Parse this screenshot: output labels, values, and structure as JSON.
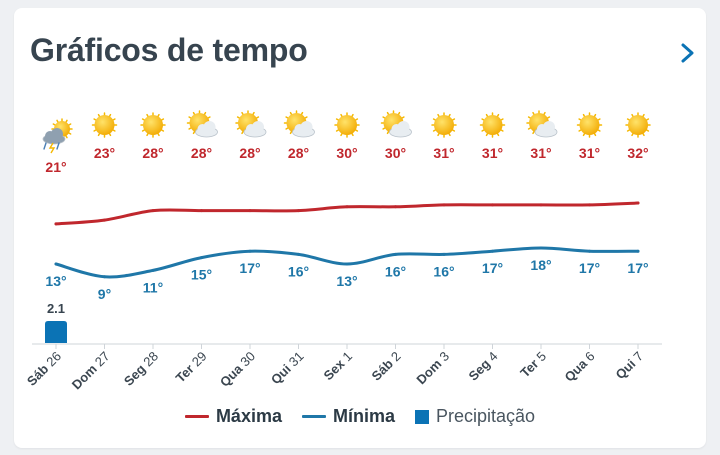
{
  "header": {
    "title": "Gráficos de tempo",
    "nav_icon": "chevron-right-icon"
  },
  "colors": {
    "max": "#c0272d",
    "min": "#1f77a8",
    "precip": "#0b73b5",
    "axis": "#cfd4d9",
    "label": "#3b4650"
  },
  "legend": {
    "max_label": "Máxima",
    "min_label": "Mínima",
    "precip_label": "Precipitação"
  },
  "chart_data": {
    "type": "line",
    "categories": [
      "Sáb 26",
      "Dom 27",
      "Seg 28",
      "Ter 29",
      "Qua 30",
      "Qui 31",
      "Sex 1",
      "Sáb 2",
      "Dom 3",
      "Seg 4",
      "Ter 5",
      "Qua 6",
      "Qui 7"
    ],
    "icons": [
      "thunderstorm-sun-icon",
      "sun-icon",
      "sun-icon",
      "partly-cloudy-icon",
      "partly-cloudy-icon",
      "partly-cloudy-icon",
      "sun-icon",
      "partly-cloudy-icon",
      "sun-icon",
      "sun-icon",
      "partly-cloudy-icon",
      "sun-icon",
      "sun-icon"
    ],
    "series": [
      {
        "name": "Máxima",
        "values": [
          21,
          23,
          28,
          28,
          28,
          28,
          30,
          30,
          31,
          31,
          31,
          31,
          32
        ],
        "unit": "°"
      },
      {
        "name": "Mínima",
        "values": [
          13,
          9,
          11,
          15,
          17,
          16,
          13,
          16,
          16,
          17,
          18,
          17,
          17
        ],
        "unit": "°"
      },
      {
        "name": "Precipitação",
        "values": [
          2.1,
          0,
          0,
          0,
          0,
          0,
          0,
          0,
          0,
          0,
          0,
          0,
          0
        ]
      }
    ],
    "precip_labels": [
      "2.1",
      "",
      "",
      "",
      "",
      "",
      "",
      "",
      "",
      "",
      "",
      "",
      ""
    ],
    "legend_position": "bottom",
    "grid": false
  }
}
